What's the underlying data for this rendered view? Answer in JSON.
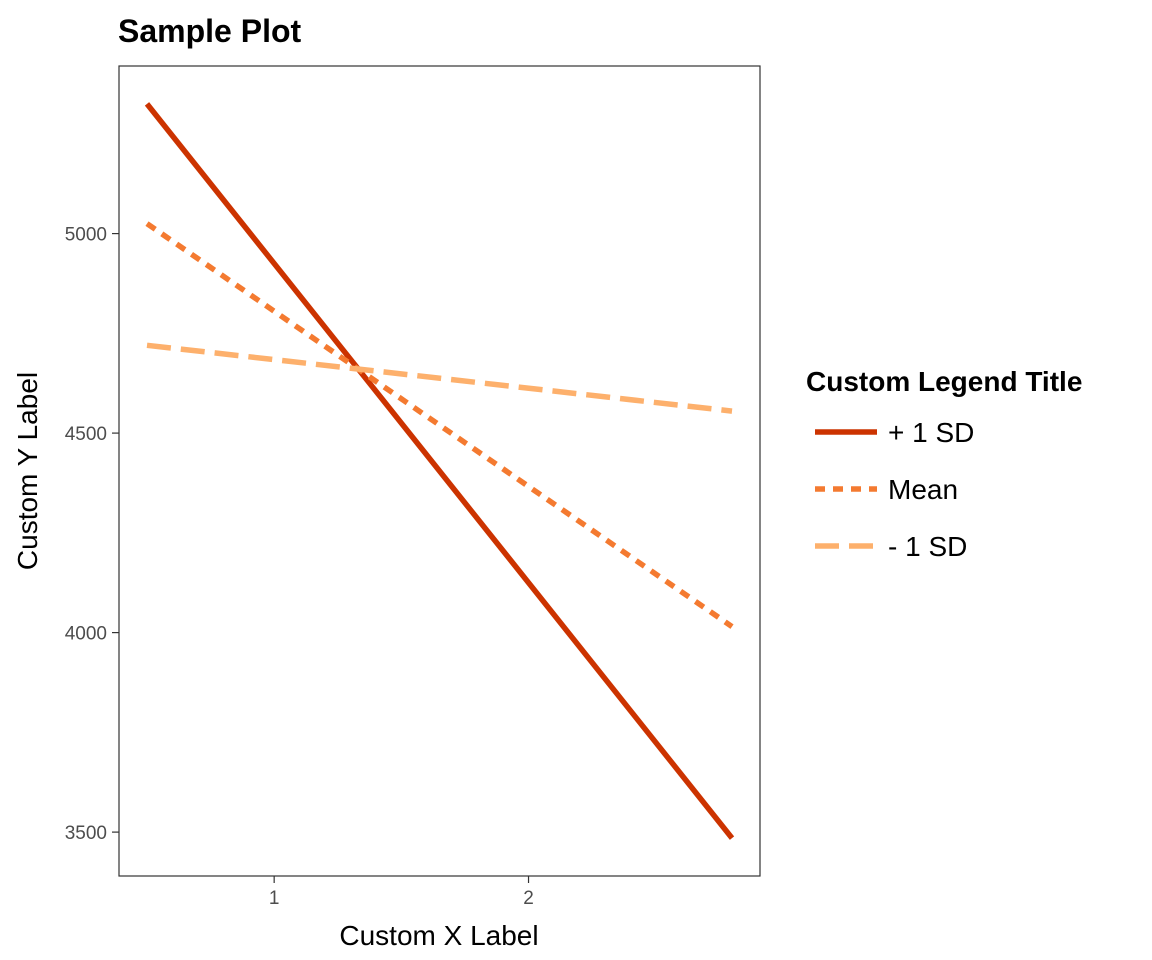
{
  "chart_data": {
    "type": "line",
    "title": "Sample Plot",
    "xlabel": "Custom X Label",
    "ylabel": "Custom Y Label",
    "legend_title": "Custom Legend Title",
    "legend_position": "right",
    "grid": false,
    "xlim": [
      0.39,
      2.91
    ],
    "ylim": [
      3390,
      5420
    ],
    "x_ticks": [
      1,
      2
    ],
    "x_tick_labels": [
      "1",
      "2"
    ],
    "y_ticks": [
      3500,
      4000,
      4500,
      5000
    ],
    "y_tick_labels": [
      "3500",
      "4000",
      "4500",
      "5000"
    ],
    "series": [
      {
        "name": "+ 1 SD",
        "color": "#cc3300",
        "linestyle": "solid",
        "x": [
          0.5,
          2.8
        ],
        "y": [
          5325,
          3485
        ]
      },
      {
        "name": "Mean",
        "color": "#f47a30",
        "linestyle": "dotted",
        "x": [
          0.5,
          2.8
        ],
        "y": [
          5025,
          4015
        ]
      },
      {
        "name": "- 1 SD",
        "color": "#fdb06c",
        "linestyle": "dashed",
        "x": [
          0.5,
          2.8
        ],
        "y": [
          4720,
          4555
        ]
      }
    ]
  }
}
